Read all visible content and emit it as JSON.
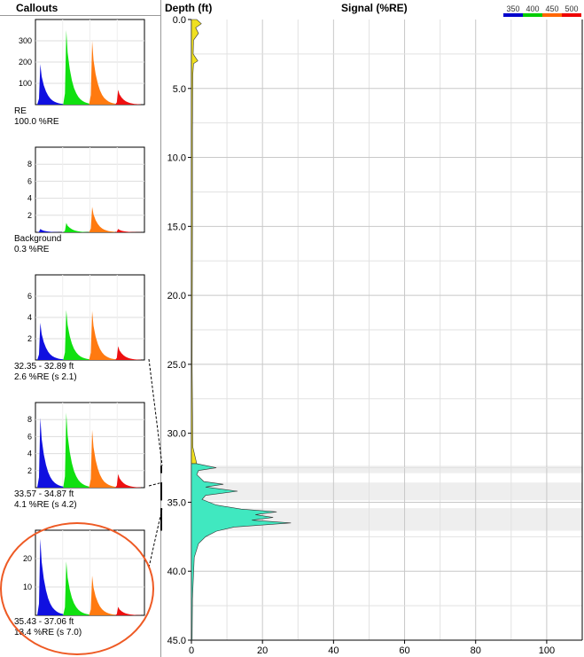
{
  "header": {
    "callouts_title": "Callouts",
    "depth_title": "Depth (ft)",
    "signal_title": "Signal (%RE)"
  },
  "legend": {
    "labels": [
      "350",
      "400",
      "450",
      "500"
    ],
    "colors": [
      "#0000cc",
      "#00cc00",
      "#ff6600",
      "#ee0000"
    ]
  },
  "colors": {
    "band_blue": "#1010e0",
    "band_green": "#10e010",
    "band_orange": "#ff7a10",
    "band_red": "#ee1010",
    "trace_yellow": "#f0e020",
    "trace_cyan": "#40e8c0",
    "highlight_band": "#eeeeee",
    "ellipse": "#ee5a24"
  },
  "callouts": [
    {
      "line1": "RE",
      "line2": "100.0 %RE",
      "ticks": [
        "100",
        "200",
        "300"
      ],
      "ymax": 400,
      "peaks": [
        190,
        350,
        300,
        70
      ]
    },
    {
      "line1": "Background",
      "line2": "0.3 %RE",
      "ticks": [
        "2",
        "4",
        "6",
        "8"
      ],
      "ymax": 10,
      "peaks": [
        0.4,
        1.1,
        3.0,
        0.4
      ]
    },
    {
      "line1": "32.35 - 32.89 ft",
      "line2": "2.6 %RE (s 2.1)",
      "ticks": [
        "2",
        "4",
        "6"
      ],
      "ymax": 8,
      "peaks": [
        3.5,
        4.7,
        4.6,
        1.3
      ]
    },
    {
      "line1": "33.57 - 34.87 ft",
      "line2": "4.1 %RE (s 4.2)",
      "ticks": [
        "2",
        "4",
        "6",
        "8"
      ],
      "ymax": 10,
      "peaks": [
        8.2,
        8.8,
        6.8,
        1.6
      ]
    },
    {
      "line1": "35.43 - 37.06 ft",
      "line2": "13.4 %RE (s 7.0)",
      "ticks": [
        "10",
        "20"
      ],
      "ymax": 30,
      "peaks": [
        27,
        19,
        14,
        3
      ]
    }
  ],
  "chart_data": {
    "type": "area",
    "xlabel": "Signal (%RE)",
    "ylabel": "Depth (ft)",
    "xlim": [
      0,
      110
    ],
    "ylim": [
      0,
      45
    ],
    "y_inverted": true,
    "grid": true,
    "y_ticks": [
      "0.0",
      "5.0",
      "10.0",
      "15.0",
      "20.0",
      "25.0",
      "30.0",
      "35.0",
      "40.0",
      "45.0"
    ],
    "x_ticks": [
      "0",
      "20",
      "40",
      "60",
      "80",
      "100"
    ],
    "highlighted_intervals": [
      [
        32.35,
        32.89
      ],
      [
        33.57,
        34.87
      ],
      [
        35.43,
        37.06
      ]
    ],
    "trace": {
      "depth": [
        0.0,
        0.3,
        0.6,
        1.0,
        1.5,
        2.5,
        3.0,
        3.2,
        4.0,
        8.0,
        15.0,
        25.0,
        31.0,
        32.2,
        32.5,
        32.7,
        33.0,
        33.5,
        33.7,
        33.9,
        34.2,
        34.5,
        34.8,
        35.2,
        35.5,
        35.7,
        35.9,
        36.1,
        36.3,
        36.5,
        36.8,
        37.1,
        37.5,
        38.0,
        39.0,
        42.0,
        45.0
      ],
      "signal": [
        1.5,
        2.8,
        1.2,
        2.0,
        0.6,
        0.5,
        1.8,
        0.6,
        0.4,
        0.3,
        0.3,
        0.2,
        0.4,
        1.5,
        7.0,
        2.0,
        1.5,
        3.5,
        9.0,
        4.0,
        13.0,
        4.0,
        3.0,
        7.0,
        14.0,
        24.0,
        18.0,
        23.0,
        17.0,
        28.0,
        12.0,
        7.0,
        4.0,
        2.0,
        0.8,
        0.3,
        0.2
      ]
    }
  }
}
